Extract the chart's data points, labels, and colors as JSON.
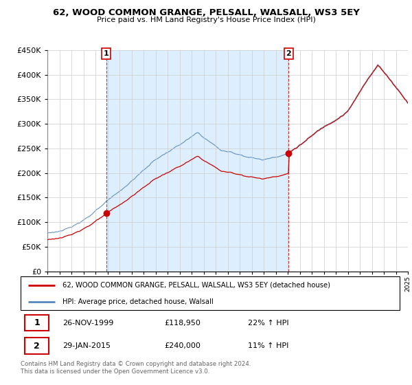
{
  "title": "62, WOOD COMMON GRANGE, PELSALL, WALSALL, WS3 5EY",
  "subtitle": "Price paid vs. HM Land Registry's House Price Index (HPI)",
  "legend_line1": "62, WOOD COMMON GRANGE, PELSALL, WALSALL, WS3 5EY (detached house)",
  "legend_line2": "HPI: Average price, detached house, Walsall",
  "annotation1_date": "26-NOV-1999",
  "annotation1_price": "£118,950",
  "annotation1_hpi": "22% ↑ HPI",
  "annotation2_date": "29-JAN-2015",
  "annotation2_price": "£240,000",
  "annotation2_hpi": "11% ↑ HPI",
  "footer": "Contains HM Land Registry data © Crown copyright and database right 2024.\nThis data is licensed under the Open Government Licence v3.0.",
  "red_color": "#cc0000",
  "blue_color": "#5588bb",
  "bg_fill_color": "#ddeeff",
  "ylim": [
    0,
    450000
  ],
  "yticks": [
    0,
    50000,
    100000,
    150000,
    200000,
    250000,
    300000,
    350000,
    400000,
    450000
  ],
  "sale1_x": 1999.9,
  "sale1_y": 118950,
  "sale2_x": 2015.08,
  "sale2_y": 240000,
  "xmin": 1995,
  "xmax": 2025
}
